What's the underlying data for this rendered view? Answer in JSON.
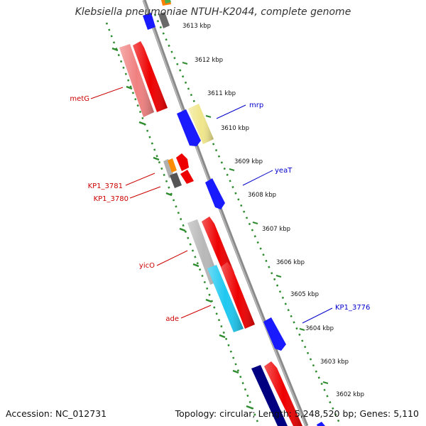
{
  "title": "Klebsiella pneumoniae NTUH-K2044, complete genome",
  "footer": {
    "accession": "Accession: NC_012731",
    "summary": "Topology: circular; Length: 5,248,520 bp; Genes: 5,110"
  },
  "colors": {
    "forward_label": "#0000cc",
    "reverse_label": "#cc0000",
    "tick": "#2e8b2e",
    "backbone": "#8a8a8a"
  },
  "kbp_ticks": [
    {
      "label": "3613 kbp"
    },
    {
      "label": "3612 kbp"
    },
    {
      "label": "3611 kbp"
    },
    {
      "label": "3610 kbp"
    },
    {
      "label": "3609 kbp"
    },
    {
      "label": "3608 kbp"
    },
    {
      "label": "3607 kbp"
    },
    {
      "label": "3606 kbp"
    },
    {
      "label": "3605 kbp"
    },
    {
      "label": "3604 kbp"
    },
    {
      "label": "3603 kbp"
    },
    {
      "label": "3602 kbp"
    }
  ],
  "gene_labels": [
    {
      "name": "metG",
      "strand": "reverse"
    },
    {
      "name": "KP1_3781",
      "strand": "reverse"
    },
    {
      "name": "KP1_3780",
      "strand": "reverse"
    },
    {
      "name": "yicO",
      "strand": "reverse"
    },
    {
      "name": "ade",
      "strand": "reverse"
    },
    {
      "name": "mrp",
      "strand": "forward"
    },
    {
      "name": "yeaT",
      "strand": "forward"
    },
    {
      "name": "KP1_3776",
      "strand": "forward"
    }
  ]
}
